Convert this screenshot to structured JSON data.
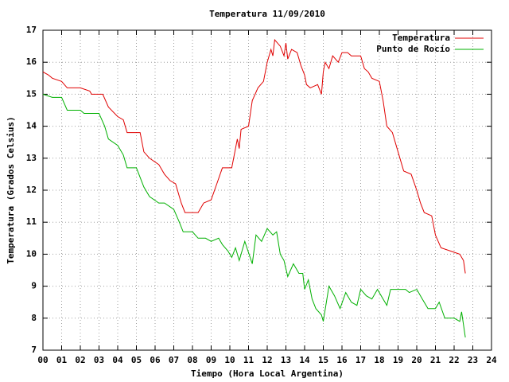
{
  "chart_data": {
    "type": "line",
    "title": "Temperatura 11/09/2010",
    "xlabel": "Tiempo (Hora Local Argentina)",
    "ylabel": "Temperatura (Grados Celsius)",
    "xlim": [
      0,
      24
    ],
    "ylim": [
      7,
      17
    ],
    "xticks": [
      {
        "value": 0,
        "label": "00"
      },
      {
        "value": 1,
        "label": "01"
      },
      {
        "value": 2,
        "label": "02"
      },
      {
        "value": 3,
        "label": "03"
      },
      {
        "value": 4,
        "label": "04"
      },
      {
        "value": 5,
        "label": "05"
      },
      {
        "value": 6,
        "label": "06"
      },
      {
        "value": 7,
        "label": "07"
      },
      {
        "value": 8,
        "label": "08"
      },
      {
        "value": 9,
        "label": "09"
      },
      10,
      11,
      12,
      13,
      14,
      15,
      16,
      17,
      18,
      19,
      20,
      21,
      22,
      23,
      24
    ],
    "yticks": [
      7,
      8,
      9,
      10,
      11,
      12,
      13,
      14,
      15,
      16,
      17
    ],
    "grid": true,
    "legend": "upper right",
    "series": [
      {
        "name": "Temperatura",
        "color": "#e00000",
        "x": [
          0,
          0.3,
          0.5,
          1.0,
          1.3,
          2.0,
          2.5,
          2.6,
          3.2,
          3.5,
          4.0,
          4.3,
          4.5,
          5.2,
          5.4,
          5.7,
          6.2,
          6.5,
          6.8,
          7.1,
          7.4,
          7.6,
          8.3,
          8.6,
          9.0,
          9.3,
          9.6,
          10.1,
          10.3,
          10.4,
          10.5,
          10.6,
          11.0,
          11.2,
          11.5,
          11.8,
          12.0,
          12.2,
          12.3,
          12.4,
          12.7,
          12.9,
          13.0,
          13.1,
          13.3,
          13.6,
          13.8,
          14.0,
          14.1,
          14.3,
          14.7,
          14.9,
          15.0,
          15.1,
          15.3,
          15.5,
          15.8,
          16.0,
          16.3,
          16.5,
          17.0,
          17.2,
          17.4,
          17.6,
          18.0,
          18.2,
          18.4,
          18.7,
          19.0,
          19.3,
          19.7,
          20.0,
          20.2,
          20.4,
          20.8,
          21.0,
          21.3,
          21.8,
          22.3,
          22.5,
          22.6
        ],
        "values": [
          15.7,
          15.6,
          15.5,
          15.4,
          15.2,
          15.2,
          15.1,
          15.0,
          15.0,
          14.6,
          14.3,
          14.2,
          13.8,
          13.8,
          13.2,
          13.0,
          12.8,
          12.5,
          12.3,
          12.2,
          11.6,
          11.3,
          11.3,
          11.6,
          11.7,
          12.2,
          12.7,
          12.7,
          13.3,
          13.6,
          13.3,
          13.9,
          14.0,
          14.8,
          15.2,
          15.4,
          16.0,
          16.4,
          16.2,
          16.7,
          16.5,
          16.2,
          16.6,
          16.1,
          16.4,
          16.3,
          15.9,
          15.6,
          15.3,
          15.2,
          15.3,
          15.0,
          15.7,
          16.0,
          15.8,
          16.2,
          16.0,
          16.3,
          16.3,
          16.2,
          16.2,
          15.8,
          15.7,
          15.5,
          15.4,
          14.8,
          14.0,
          13.8,
          13.2,
          12.6,
          12.5,
          12.0,
          11.6,
          11.3,
          11.2,
          10.6,
          10.2,
          10.1,
          10.0,
          9.8,
          9.4
        ]
      },
      {
        "name": "Punto de Rocío",
        "color": "#00b000",
        "x": [
          0,
          0.5,
          1.0,
          1.3,
          2.0,
          2.2,
          3.0,
          3.3,
          3.5,
          4.0,
          4.3,
          4.5,
          5.0,
          5.2,
          5.4,
          5.7,
          6.2,
          6.5,
          7.0,
          7.3,
          7.5,
          8.0,
          8.3,
          8.7,
          9.0,
          9.4,
          9.6,
          9.9,
          10.1,
          10.3,
          10.5,
          10.8,
          11.2,
          11.4,
          11.7,
          12.0,
          12.3,
          12.5,
          12.7,
          12.9,
          13.1,
          13.4,
          13.7,
          13.9,
          14.0,
          14.2,
          14.4,
          14.6,
          14.9,
          15.0,
          15.3,
          15.6,
          15.9,
          16.2,
          16.5,
          16.8,
          17.0,
          17.3,
          17.6,
          17.9,
          18.2,
          18.4,
          18.6,
          19.0,
          19.4,
          19.6,
          20.0,
          20.3,
          20.6,
          21.0,
          21.2,
          21.5,
          22.0,
          22.3,
          22.4,
          22.6
        ],
        "values": [
          15.0,
          14.9,
          14.9,
          14.5,
          14.5,
          14.4,
          14.4,
          14.0,
          13.6,
          13.4,
          13.1,
          12.7,
          12.7,
          12.4,
          12.1,
          11.8,
          11.6,
          11.6,
          11.4,
          11.0,
          10.7,
          10.7,
          10.5,
          10.5,
          10.4,
          10.5,
          10.3,
          10.1,
          9.9,
          10.2,
          9.8,
          10.4,
          9.7,
          10.6,
          10.4,
          10.8,
          10.6,
          10.7,
          10.0,
          9.8,
          9.3,
          9.7,
          9.4,
          9.4,
          8.9,
          9.2,
          8.6,
          8.3,
          8.1,
          7.9,
          9.0,
          8.7,
          8.3,
          8.8,
          8.5,
          8.4,
          8.9,
          8.7,
          8.6,
          8.9,
          8.6,
          8.4,
          8.9,
          8.9,
          8.9,
          8.8,
          8.9,
          8.6,
          8.3,
          8.3,
          8.5,
          8.0,
          8.0,
          7.9,
          8.2,
          7.4
        ]
      }
    ]
  }
}
